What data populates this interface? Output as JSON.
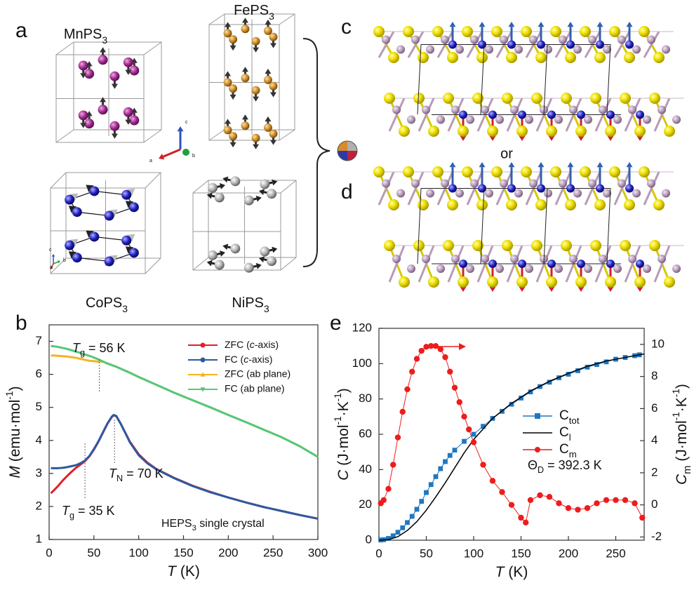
{
  "figure": {
    "panel_labels": [
      "a",
      "b",
      "c",
      "d",
      "e"
    ],
    "compounds": [
      [
        "MnPS",
        {
          "sub": "3"
        }
      ],
      [
        "FePS",
        {
          "sub": "3"
        }
      ],
      [
        "CoPS",
        {
          "sub": "3"
        }
      ],
      [
        "NiPS",
        {
          "sub": "3"
        }
      ]
    ],
    "triad_labels": [
      "c",
      "a",
      "b"
    ],
    "or": "or"
  },
  "chart_data": [
    {
      "type": "line",
      "xlabel": [
        {
          "i": "T"
        },
        " (K)"
      ],
      "ylabel": [
        {
          "i": "M"
        },
        " (emu·mol",
        {
          "sup": "-1"
        },
        ")"
      ],
      "x": [
        2,
        5,
        10,
        15,
        20,
        25,
        30,
        35,
        40,
        45,
        50,
        55,
        60,
        65,
        70,
        72,
        75,
        80,
        90,
        100,
        110,
        120,
        140,
        160,
        180,
        200,
        220,
        240,
        260,
        280,
        300
      ],
      "series": [
        {
          "name": [
            "ZFC (",
            {
              "i": "c"
            },
            "-axis)"
          ],
          "color": "#e0202a",
          "marker": "circle",
          "values": [
            2.4,
            2.48,
            2.62,
            2.78,
            2.92,
            3.05,
            3.17,
            3.27,
            3.37,
            3.52,
            3.72,
            3.96,
            4.23,
            4.5,
            4.71,
            4.76,
            4.73,
            4.5,
            3.97,
            3.58,
            3.32,
            3.13,
            2.86,
            2.63,
            2.44,
            2.27,
            2.12,
            1.98,
            1.86,
            1.74,
            1.63
          ]
        },
        {
          "name": [
            "FC (",
            {
              "i": "c"
            },
            "-axis)"
          ],
          "color": "#2c5aa0",
          "marker": "circle",
          "values": [
            3.16,
            3.16,
            3.16,
            3.17,
            3.19,
            3.22,
            3.25,
            3.31,
            3.39,
            3.53,
            3.74,
            3.97,
            4.24,
            4.51,
            4.72,
            4.77,
            4.74,
            4.5,
            3.95,
            3.55,
            3.3,
            3.12,
            2.85,
            2.62,
            2.43,
            2.27,
            2.12,
            1.98,
            1.86,
            1.74,
            1.63
          ]
        },
        {
          "name": "ZFC (ab plane)",
          "color": "#f5b323",
          "marker": "triangle-up",
          "values": [
            6.57,
            6.57,
            6.56,
            6.55,
            6.54,
            6.52,
            6.5,
            6.47,
            6.44,
            6.41,
            6.4,
            6.38,
            6.39,
            6.33,
            6.28,
            6.26,
            6.23,
            6.17,
            6.05,
            5.92,
            5.8,
            5.68,
            5.44,
            5.22,
            5.0,
            4.77,
            4.55,
            4.32,
            4.09,
            3.82,
            3.5
          ]
        },
        {
          "name": "FC (ab plane)",
          "color": "#55c77a",
          "marker": "triangle-down",
          "values": [
            6.86,
            6.85,
            6.83,
            6.8,
            6.77,
            6.73,
            6.69,
            6.65,
            6.6,
            6.56,
            6.51,
            6.45,
            6.39,
            6.33,
            6.28,
            6.26,
            6.23,
            6.17,
            6.05,
            5.92,
            5.8,
            5.68,
            5.44,
            5.22,
            5.0,
            4.77,
            4.55,
            4.32,
            4.09,
            3.82,
            3.5
          ]
        }
      ],
      "xlim": [
        0,
        300
      ],
      "xticks": [
        0,
        50,
        100,
        150,
        200,
        250,
        300
      ],
      "ylim": [
        1,
        7.5
      ],
      "yticks": [
        1,
        2,
        3,
        4,
        5,
        6,
        7
      ],
      "point_markers": false,
      "legend": "upper right",
      "annotations": [
        {
          "text": [
            {
              "i": "T"
            },
            {
              "sub": "g"
            },
            " = 56 K"
          ],
          "x": 56
        },
        {
          "text": [
            {
              "i": "T"
            },
            {
              "sub": "N"
            },
            " = 70 K"
          ],
          "x": 73
        },
        {
          "text": [
            {
              "i": "T"
            },
            {
              "sub": "g"
            },
            " = 35 K"
          ],
          "x": 40
        }
      ],
      "note": [
        "HEPS",
        {
          "sub": "3"
        },
        " single crystal"
      ]
    },
    {
      "type": "line",
      "xlabel": [
        {
          "i": "T"
        },
        " (K)"
      ],
      "ylabel": [
        {
          "i": "C"
        },
        " (J·mol",
        {
          "sup": "-1"
        },
        "·K",
        {
          "sup": "-1"
        },
        ")"
      ],
      "y2label": [
        {
          "i": "C"
        },
        {
          "sub": "m"
        },
        " (J·mol",
        {
          "sup": "-1"
        },
        "·K",
        {
          "sup": "-1"
        },
        ")"
      ],
      "series": [
        {
          "name": [
            "C",
            {
              "sub": "tot"
            }
          ],
          "color": "#1f77c0",
          "marker": "square",
          "x": [
            2,
            5,
            10,
            15,
            20,
            25,
            30,
            35,
            40,
            45,
            50,
            55,
            60,
            65,
            70,
            75,
            80,
            90,
            100,
            110,
            120,
            130,
            140,
            150,
            160,
            170,
            180,
            190,
            200,
            210,
            220,
            230,
            240,
            250,
            260,
            270,
            275
          ],
          "values": [
            0.1,
            0.3,
            1.0,
            2.5,
            4.5,
            7,
            10,
            13.5,
            17.5,
            22,
            27,
            31.5,
            36,
            40.5,
            44.5,
            48,
            51,
            56,
            60,
            64.5,
            69,
            73,
            77,
            80.5,
            84,
            87,
            89.5,
            92,
            94,
            96,
            98,
            99.5,
            101,
            102.5,
            103.5,
            104.5,
            105
          ]
        },
        {
          "name": [
            "C",
            {
              "sub": "l"
            }
          ],
          "color": "#000000",
          "marker": "none",
          "x": [
            0,
            10,
            20,
            30,
            40,
            50,
            60,
            70,
            80,
            90,
            100,
            120,
            140,
            160,
            180,
            200,
            220,
            240,
            260,
            280
          ],
          "values": [
            0,
            0.3,
            2,
            5.5,
            10.5,
            17,
            24.5,
            32.5,
            41,
            49.5,
            57,
            69,
            77.5,
            84.5,
            90,
            94.5,
            98.5,
            101.5,
            103.5,
            105.5
          ]
        },
        {
          "name": [
            "C",
            {
              "sub": "m"
            }
          ],
          "color": "#ee1c1c",
          "marker": "circle",
          "axis": "y2",
          "x": [
            2,
            5,
            10,
            15,
            20,
            25,
            30,
            35,
            40,
            45,
            50,
            55,
            60,
            65,
            70,
            75,
            80,
            85,
            90,
            95,
            100,
            110,
            120,
            130,
            140,
            150,
            155,
            160,
            170,
            180,
            190,
            200,
            210,
            220,
            230,
            240,
            250,
            260,
            270,
            278
          ],
          "values": [
            0.1,
            0.3,
            1.0,
            2.5,
            4.2,
            5.8,
            7.2,
            8.3,
            9.1,
            9.6,
            9.85,
            9.9,
            9.9,
            9.7,
            9.2,
            8.3,
            7.3,
            6.4,
            5.5,
            4.7,
            3.9,
            2.5,
            1.5,
            0.8,
            0.0,
            -0.8,
            -1.1,
            0.3,
            0.6,
            0.5,
            0.1,
            -0.2,
            -0.3,
            -0.2,
            0.1,
            0.3,
            0.3,
            0.3,
            0.1,
            -0.8
          ]
        }
      ],
      "xlim": [
        0,
        280
      ],
      "xticks": [
        0,
        50,
        100,
        150,
        200,
        250
      ],
      "ylim": [
        0,
        120
      ],
      "yticks": [
        0,
        20,
        40,
        60,
        80,
        100,
        120
      ],
      "y2lim": [
        -2.2,
        11
      ],
      "y2ticks": [
        -2,
        0,
        2,
        4,
        6,
        8,
        10
      ],
      "point_markers": true,
      "legend": "center right",
      "annotations": [
        {
          "text": [
            "Θ",
            {
              "sub": "D"
            },
            " = 392.3 K"
          ]
        }
      ]
    }
  ]
}
